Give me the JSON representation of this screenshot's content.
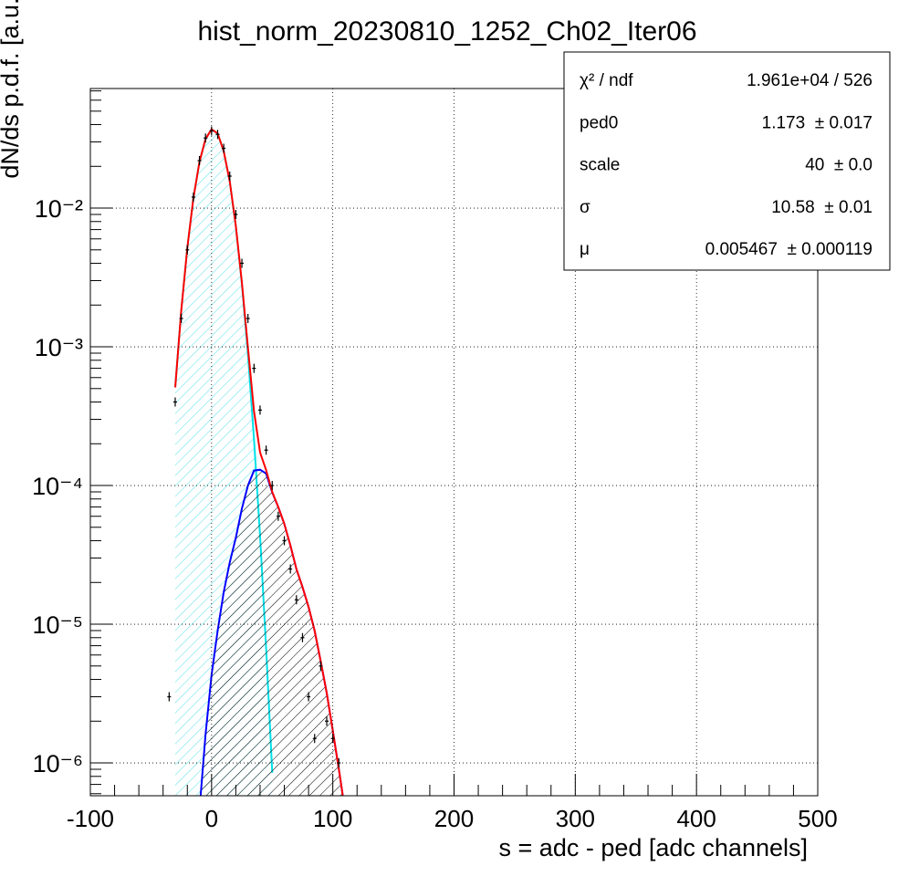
{
  "chart_data": {
    "type": "line",
    "title": "hist_norm_20230810_1252_Ch02_Iter06",
    "x_label": "s = adc - ped [adc channels]",
    "y_label": "dN/ds p.d.f. [a.u.]",
    "log_y": true,
    "grid": true,
    "xlim": [
      -100,
      500
    ],
    "xticks": [
      -100,
      0,
      100,
      200,
      300,
      400,
      500
    ],
    "ylim": [
      5.8e-07,
      0.0728
    ],
    "yticks": [
      {
        "value": 1e-06,
        "label": "10⁻⁶"
      },
      {
        "value": 1e-05,
        "label": "10⁻⁵"
      },
      {
        "value": 0.0001,
        "label": "10⁻⁴"
      },
      {
        "value": 0.001,
        "label": "10⁻³"
      },
      {
        "value": 0.01,
        "label": "10⁻²"
      }
    ],
    "series": [
      {
        "style": "points",
        "color": "#000000",
        "x": [
          -35,
          -30,
          -25,
          -20,
          -15,
          -10,
          -5,
          0,
          5,
          10,
          15,
          20,
          25,
          30,
          35,
          40,
          45,
          50,
          55,
          60,
          65,
          70,
          75,
          80,
          85,
          90,
          95,
          100,
          105
        ],
        "values": [
          3e-06,
          0.0004,
          0.0016,
          0.005,
          0.012,
          0.022,
          0.032,
          0.036,
          0.034,
          0.027,
          0.017,
          0.009,
          0.004,
          0.0016,
          0.0007,
          0.00035,
          0.00018,
          0.0001,
          6e-05,
          4e-05,
          2.5e-05,
          1.5e-05,
          8e-06,
          3e-06,
          1.5e-06,
          5e-06,
          2e-06,
          1.5e-06,
          1e-06
        ]
      },
      {
        "style": "line",
        "color": "#00e0e8",
        "fill": "hatch-cyan",
        "x": [
          -30,
          -25,
          -20,
          -15,
          -10,
          -5,
          0,
          5,
          10,
          15,
          20,
          25,
          30,
          35,
          40,
          45,
          50
        ],
        "values": [
          0.00051,
          0.00183,
          0.0052,
          0.0118,
          0.0216,
          0.0315,
          0.037,
          0.0345,
          0.0258,
          0.0155,
          0.0074,
          0.00285,
          0.00088,
          0.000216,
          4.3e-05,
          6.7e-06,
          8.5e-07
        ]
      },
      {
        "style": "line",
        "color": "#0000ff",
        "fill": "hatch-black",
        "x": [
          -10,
          -5,
          0,
          5,
          10,
          15,
          20,
          25,
          30,
          35,
          40,
          45,
          50,
          55,
          60,
          65,
          70,
          75,
          80,
          85,
          90,
          95,
          100,
          105,
          110
        ],
        "values": [
          4.6e-07,
          1.6e-06,
          4.3e-06,
          9e-06,
          1.7e-05,
          2.8e-05,
          4.2e-05,
          6.8e-05,
          0.0001,
          0.000128,
          0.00013,
          0.000122,
          8.9e-05,
          7e-05,
          5.3e-05,
          3.7e-05,
          2.5e-05,
          1.85e-05,
          1.33e-05,
          9e-06,
          5.4e-06,
          3.2e-06,
          1.7e-06,
          9e-07,
          4.6e-07
        ]
      },
      {
        "style": "line",
        "color": "#ff0000",
        "x": [
          -30,
          -25,
          -20,
          -15,
          -10,
          -5,
          0,
          5,
          10,
          15,
          20,
          25,
          30,
          35,
          40,
          45,
          50,
          55,
          60,
          65,
          70,
          75,
          80,
          85,
          90,
          95,
          100,
          105,
          110
        ],
        "values": [
          0.00051,
          0.00183,
          0.0052,
          0.0118,
          0.0216,
          0.0315,
          0.037,
          0.0345,
          0.0258,
          0.0155,
          0.00744,
          0.00292,
          0.00098,
          0.000344,
          0.000173,
          0.000129,
          8.98e-05,
          7e-05,
          5.3e-05,
          3.7e-05,
          2.5e-05,
          1.85e-05,
          1.33e-05,
          9e-06,
          5.4e-06,
          3.2e-06,
          1.7e-06,
          9e-07,
          4.6e-07
        ]
      }
    ],
    "stats": [
      {
        "name": "χ² / ndf",
        "value": "1.961e+04 / 526"
      },
      {
        "name": "ped0",
        "value": "1.173  ± 0.017"
      },
      {
        "name": "scale",
        "value": "40  ± 0.0"
      },
      {
        "name": "σ",
        "value": "10.58  ± 0.01"
      },
      {
        "name": "μ",
        "value": "0.005467  ± 0.000119"
      }
    ]
  }
}
